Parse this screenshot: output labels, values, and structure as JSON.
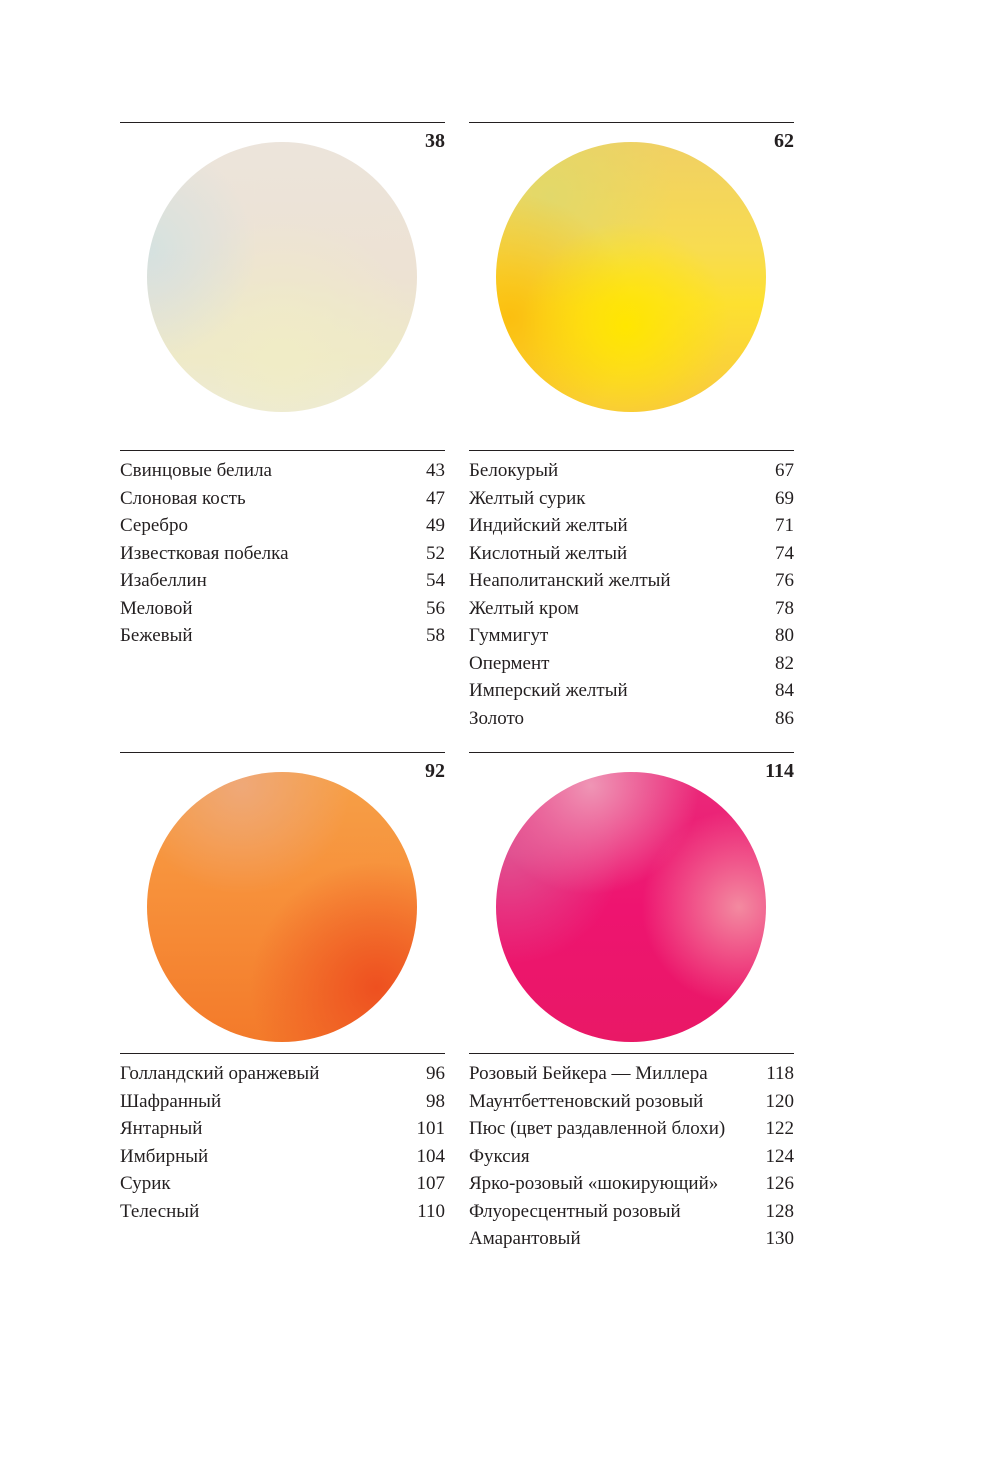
{
  "sections": [
    {
      "number": "38",
      "color": "#ede4d4",
      "items": [
        {
          "name": "Свинцовые белила",
          "page": "43"
        },
        {
          "name": "Слоновая кость",
          "page": "47"
        },
        {
          "name": "Серебро",
          "page": "49"
        },
        {
          "name": "Известковая побелка",
          "page": "52"
        },
        {
          "name": "Изабеллин",
          "page": "54"
        },
        {
          "name": "Меловой",
          "page": "56"
        },
        {
          "name": "Бежевый",
          "page": "58"
        }
      ]
    },
    {
      "number": "62",
      "color": "#fde030",
      "items": [
        {
          "name": "Белокурый",
          "page": "67"
        },
        {
          "name": "Желтый сурик",
          "page": "69"
        },
        {
          "name": "Индийский желтый",
          "page": "71"
        },
        {
          "name": "Кислотный желтый",
          "page": "74"
        },
        {
          "name": "Неаполитанский желтый",
          "page": "76"
        },
        {
          "name": "Желтый кром",
          "page": "78"
        },
        {
          "name": "Гуммигут",
          "page": "80"
        },
        {
          "name": "Опермент",
          "page": "82"
        },
        {
          "name": "Имперский желтый",
          "page": "84"
        },
        {
          "name": "Золото",
          "page": "86"
        }
      ]
    },
    {
      "number": "92",
      "color": "#f7903a",
      "items": [
        {
          "name": "Голландский оранжевый",
          "page": "96"
        },
        {
          "name": "Шафранный",
          "page": "98"
        },
        {
          "name": "Янтарный",
          "page": "101"
        },
        {
          "name": "Имбирный",
          "page": "104"
        },
        {
          "name": "Сурик",
          "page": "107"
        },
        {
          "name": "Телесный",
          "page": "110"
        }
      ]
    },
    {
      "number": "114",
      "color": "#ee1470",
      "items": [
        {
          "name": "Розовый Бейкера — Миллера",
          "page": "118"
        },
        {
          "name": "Маунтбеттеновский розовый",
          "page": "120"
        },
        {
          "name": "Пюс (цвет раздавленной блохи)",
          "page": "122"
        },
        {
          "name": "Фуксия",
          "page": "124"
        },
        {
          "name": "Ярко-розовый «шокирующий»",
          "page": "126"
        },
        {
          "name": "Флуоресцентный розовый",
          "page": "128"
        },
        {
          "name": "Амарантовый",
          "page": "130"
        }
      ]
    }
  ]
}
